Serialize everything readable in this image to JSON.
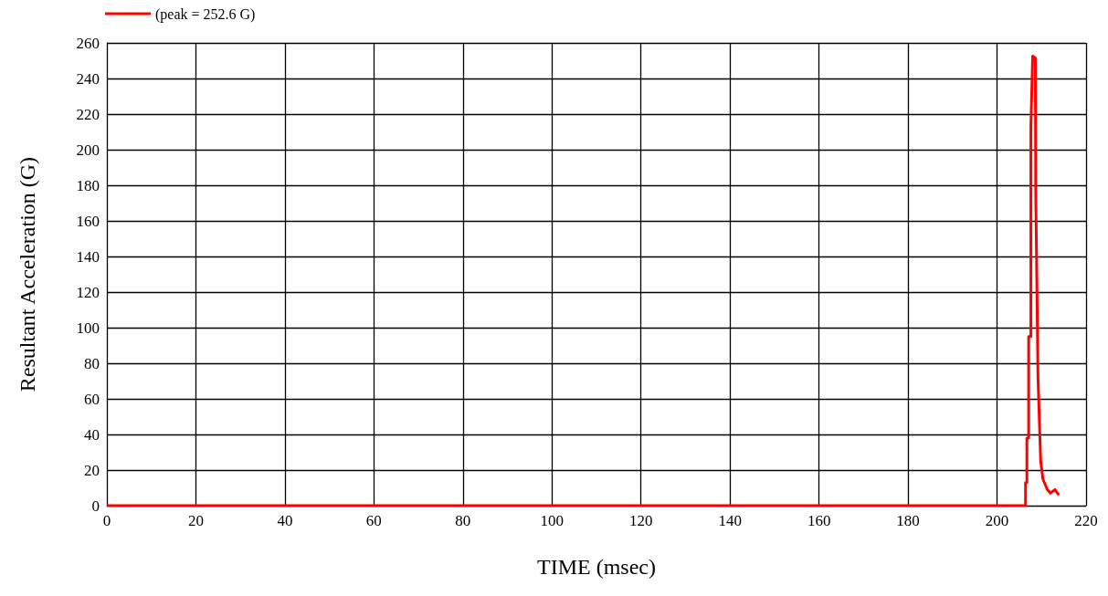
{
  "chart_data": {
    "type": "line",
    "xlabel": "TIME (msec)",
    "ylabel": "Resultant Acceleration (G)",
    "series": [
      {
        "name": "(peak = 252.6 G)",
        "color": "#ff0000",
        "x": [
          0,
          206.4,
          206.4,
          206.7,
          206.7,
          207.1,
          207.1,
          207.6,
          207.6,
          208.0,
          208.6,
          208.7,
          209.2,
          209.8,
          210.3,
          211.3,
          212.0,
          213.0,
          213.9
        ],
        "values": [
          0,
          0,
          13,
          13,
          38,
          38,
          95,
          95,
          213,
          252.6,
          251.6,
          175,
          72,
          25,
          15,
          9,
          7,
          9,
          6
        ]
      }
    ],
    "xlim": [
      0,
      220
    ],
    "xticks": [
      0,
      20,
      40,
      60,
      80,
      100,
      120,
      140,
      160,
      180,
      200,
      220
    ],
    "ylim": [
      0,
      260
    ],
    "yticks": [
      0,
      20,
      40,
      60,
      80,
      100,
      120,
      140,
      160,
      180,
      200,
      220,
      240,
      260
    ],
    "grid": true,
    "legend": "top left",
    "marker": "none",
    "line_style": "solid"
  }
}
